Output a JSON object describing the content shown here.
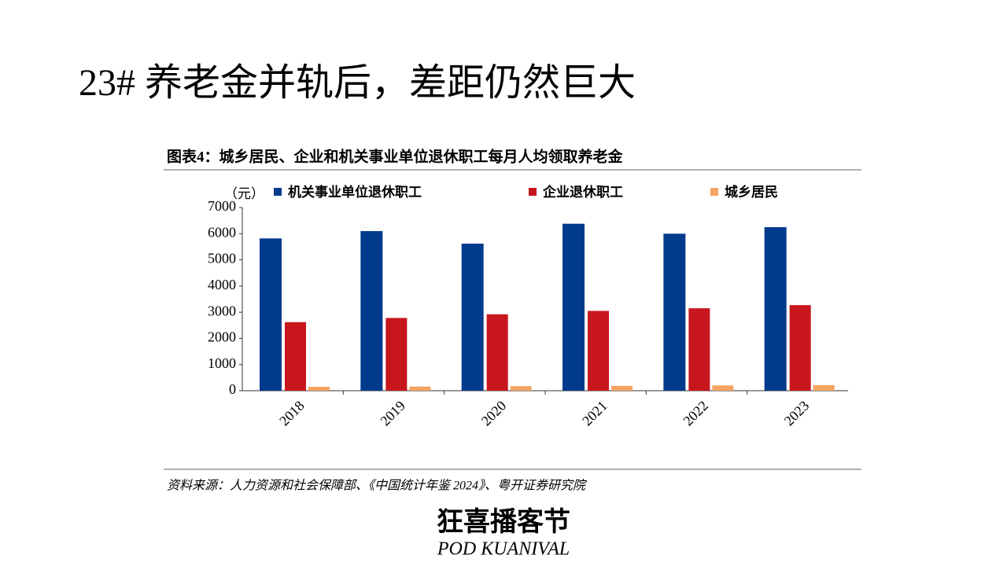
{
  "slide_title": "23# 养老金并轨后，差距仍然巨大",
  "chart_data": {
    "type": "bar",
    "title": "图表4：城乡居民、企业和机关事业单位退休职工每月人均领取养老金",
    "y_label": "（元）",
    "categories": [
      "2018",
      "2019",
      "2020",
      "2021",
      "2022",
      "2023"
    ],
    "series": [
      {
        "name": "机关事业单位退休职工",
        "color": "#003a8c",
        "values": [
          5820,
          6100,
          5620,
          6380,
          6000,
          6250
        ]
      },
      {
        "name": "企业退休职工",
        "color": "#c8161d",
        "values": [
          2620,
          2780,
          2920,
          3050,
          3150,
          3270
        ]
      },
      {
        "name": "城乡居民",
        "color": "#f4a460",
        "values": [
          150,
          160,
          175,
          185,
          200,
          215
        ]
      }
    ],
    "ylim": [
      0,
      7000
    ],
    "yticks": [
      0,
      1000,
      2000,
      3000,
      4000,
      5000,
      6000,
      7000
    ],
    "grid": false,
    "source": "资料来源：人力资源和社会保障部、《中国统计年鉴 2024》、粤开证券研究院"
  },
  "watermark": {
    "title": "狂喜播客节",
    "subtitle": "POD KUANIVAL"
  }
}
